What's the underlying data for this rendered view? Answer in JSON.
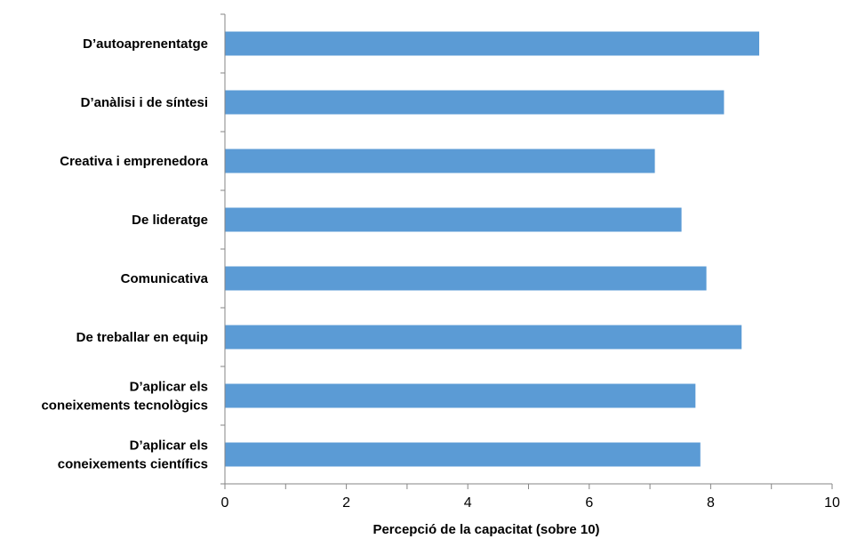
{
  "chart_data": {
    "type": "bar",
    "orientation": "horizontal",
    "categories": [
      "D’autoaprenentatge",
      "D’anàlisi i de síntesi",
      "Creativa i emprenedora",
      "De lideratge",
      "Comunicativa",
      "De treballar en equip",
      "D’aplicar els coneixements tecnològics",
      "D’aplicar els coneixements científics"
    ],
    "category_lines": [
      [
        "D’autoaprenentatge"
      ],
      [
        "D’anàlisi i de síntesi"
      ],
      [
        "Creativa i emprenedora"
      ],
      [
        "De lideratge"
      ],
      [
        "Comunicativa"
      ],
      [
        "De treballar en equip"
      ],
      [
        "D’aplicar els",
        "coneixements tecnològics"
      ],
      [
        "D’aplicar els",
        "coneixements científics"
      ]
    ],
    "values": [
      8.8,
      8.22,
      7.08,
      7.52,
      7.93,
      8.51,
      7.75,
      7.83
    ],
    "xlabel": "Percepció de la capacitat (sobre 10)",
    "ylabel": "",
    "xlim": [
      0,
      10
    ],
    "xticks": [
      "0",
      "2",
      "4",
      "6",
      "8",
      "10"
    ],
    "bar_color": "#5b9bd5",
    "axis_color": "#868686",
    "grid": false,
    "legend": "none"
  }
}
